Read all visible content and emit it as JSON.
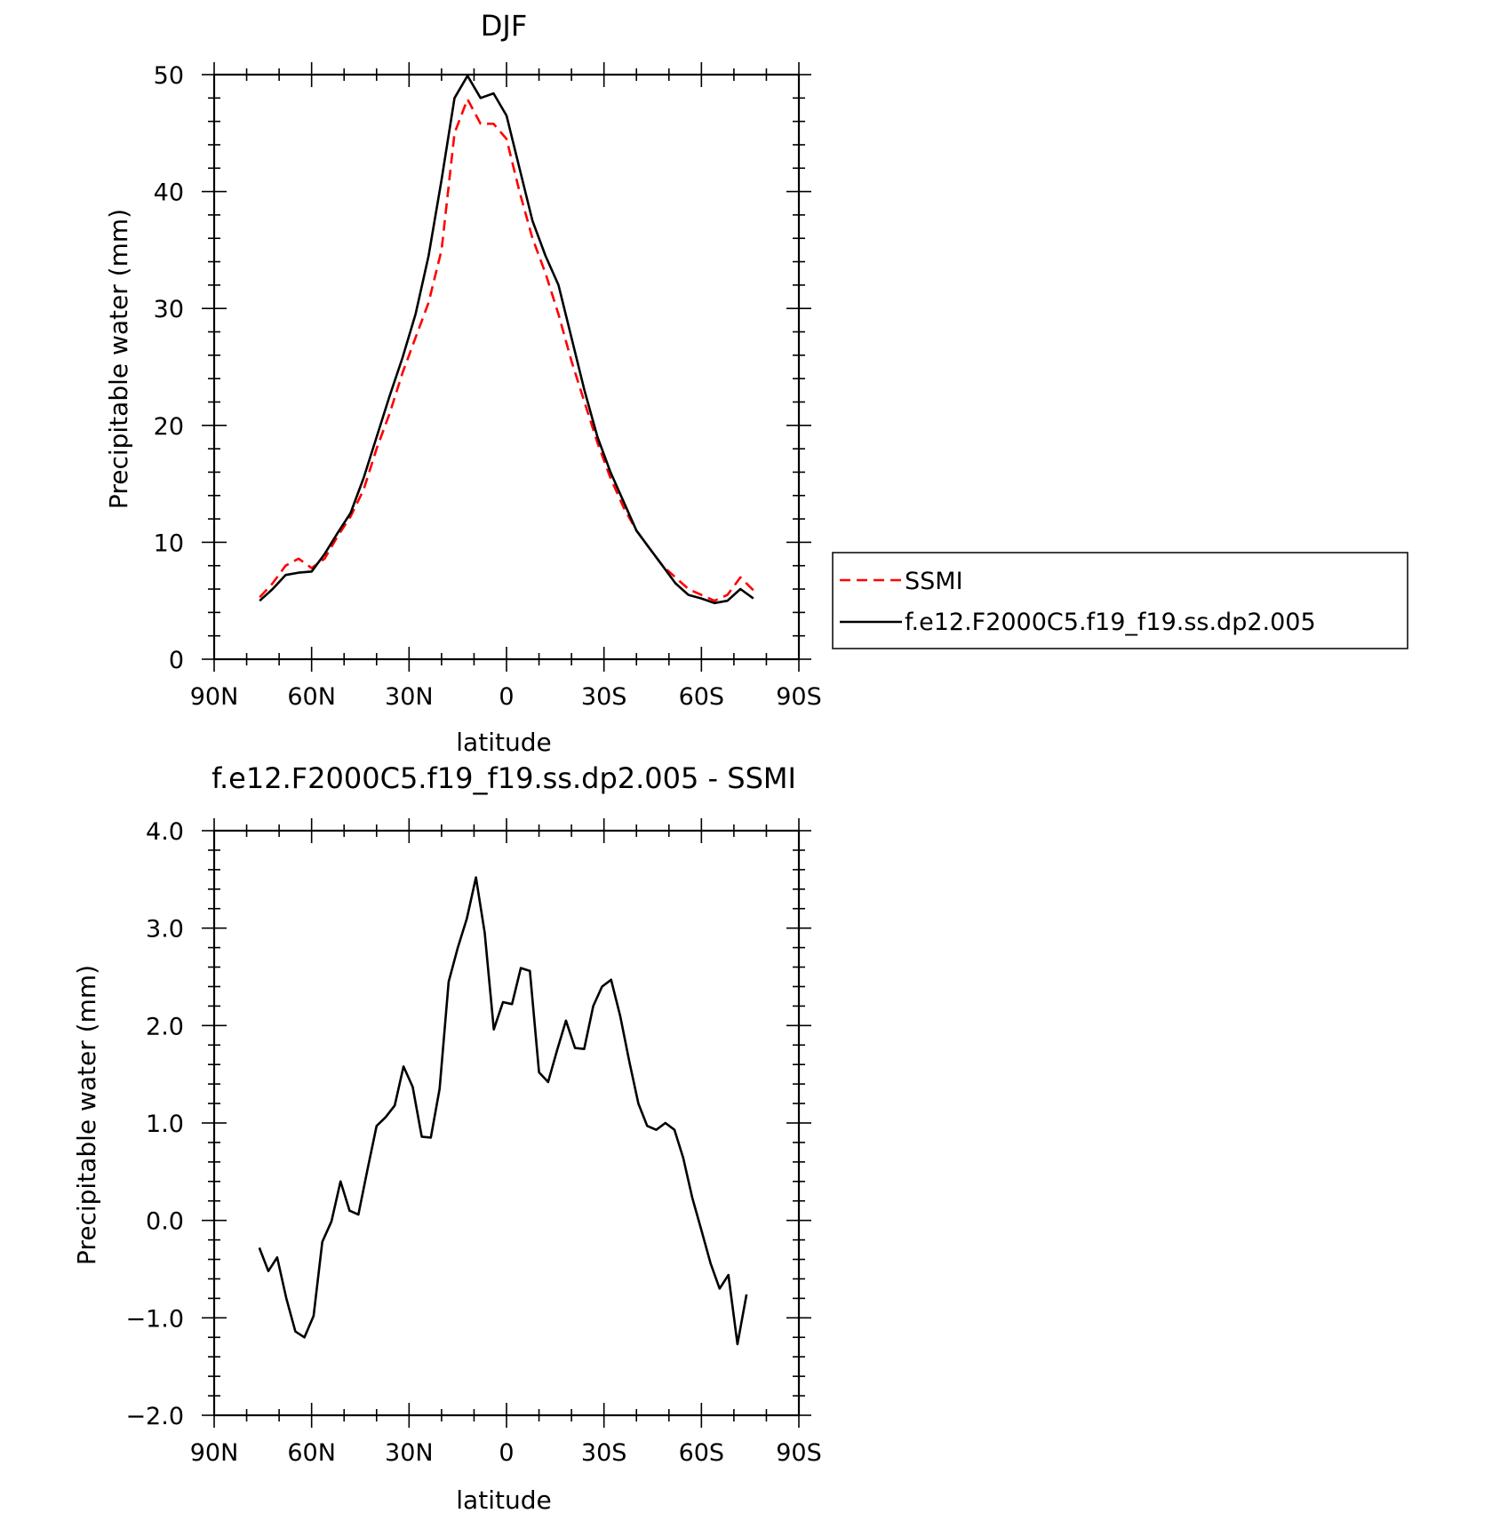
{
  "chart_data": [
    {
      "type": "line",
      "title": "DJF",
      "xlabel": "latitude",
      "ylabel": "Precipitable water (mm)",
      "xlim": [
        90,
        -90
      ],
      "ylim": [
        0,
        50
      ],
      "xticks": [
        90,
        60,
        30,
        0,
        -30,
        -60,
        -90
      ],
      "xtick_labels": [
        "90N",
        "60N",
        "30N",
        "0",
        "30S",
        "60S",
        "90S"
      ],
      "yticks": [
        0,
        10,
        20,
        30,
        40,
        50
      ],
      "ytick_labels": [
        "0",
        "10",
        "20",
        "30",
        "40",
        "50"
      ],
      "grid": false,
      "legend": "outside-right",
      "x": [
        76,
        72,
        68,
        64,
        60,
        56,
        52,
        48,
        44,
        40,
        36,
        32,
        28,
        24,
        20,
        16,
        12,
        8,
        4,
        0,
        -4,
        -8,
        -12,
        -16,
        -20,
        -24,
        -28,
        -32,
        -36,
        -40,
        -44,
        -48,
        -52,
        -56,
        -60,
        -64,
        -68,
        -72,
        -76
      ],
      "series": [
        {
          "name": "SSMI",
          "color": "#ff0000",
          "dash": "dashed",
          "values": [
            5.3,
            6.5,
            8.0,
            8.6,
            7.8,
            8.6,
            10.5,
            12.2,
            14.5,
            18.0,
            21.0,
            24.5,
            27.5,
            30.5,
            35.0,
            45.0,
            47.9,
            45.8,
            45.8,
            44.5,
            40.0,
            36.0,
            33.0,
            29.5,
            25.5,
            22.0,
            18.5,
            15.5,
            13.0,
            11.0,
            9.5,
            8.0,
            7.0,
            6.0,
            5.5,
            5.0,
            5.5,
            7.0,
            5.9
          ]
        },
        {
          "name": "f.e12.F2000C5.f19_f19.ss.dp2.005",
          "color": "#000000",
          "dash": "solid",
          "values": [
            5.0,
            6.0,
            7.2,
            7.4,
            7.5,
            9.0,
            10.8,
            12.5,
            15.5,
            19.0,
            22.5,
            25.8,
            29.5,
            34.5,
            41.0,
            48.0,
            49.9,
            48.0,
            48.4,
            46.5,
            42.0,
            37.5,
            34.5,
            32.0,
            27.5,
            23.0,
            19.0,
            16.0,
            13.5,
            11.0,
            9.5,
            8.0,
            6.5,
            5.5,
            5.2,
            4.8,
            5.0,
            6.0,
            5.2
          ]
        }
      ]
    },
    {
      "type": "line",
      "title": "f.e12.F2000C5.f19_f19.ss.dp2.005 - SSMI",
      "xlabel": "latitude",
      "ylabel": "Precipitable water (mm)",
      "xlim": [
        90,
        -90
      ],
      "ylim": [
        -2.0,
        4.0
      ],
      "xticks": [
        90,
        60,
        30,
        0,
        -30,
        -60,
        -90
      ],
      "xtick_labels": [
        "90N",
        "60N",
        "30N",
        "0",
        "30S",
        "60S",
        "90S"
      ],
      "yticks": [
        -2,
        -1,
        0,
        1,
        2,
        3,
        4
      ],
      "ytick_labels": [
        "−2.0",
        "−1.0",
        "0.0",
        "1.0",
        "2.0",
        "3.0",
        "4.0"
      ],
      "grid": false,
      "x": [
        76.1,
        73.3,
        70.6,
        67.8,
        65.0,
        62.2,
        59.4,
        56.7,
        53.9,
        51.1,
        48.3,
        45.6,
        42.8,
        40.0,
        37.2,
        34.4,
        31.7,
        28.9,
        26.1,
        23.3,
        20.6,
        17.8,
        15.0,
        12.2,
        9.4,
        6.7,
        3.9,
        1.1,
        -1.7,
        -4.4,
        -7.2,
        -10.0,
        -12.8,
        -15.6,
        -18.3,
        -21.1,
        -23.9,
        -26.7,
        -29.4,
        -32.2,
        -35.0,
        -37.8,
        -40.6,
        -43.3,
        -46.1,
        -48.9,
        -51.7,
        -54.4,
        -57.2,
        -60.0,
        -62.8,
        -65.6,
        -68.3,
        -71.1,
        -73.9
      ],
      "series": [
        {
          "color": "#000000",
          "dash": "solid",
          "values": [
            -0.28,
            -0.52,
            -0.38,
            -0.8,
            -1.14,
            -1.2,
            -0.98,
            -0.22,
            -0.01,
            0.4,
            0.1,
            0.06,
            0.52,
            0.97,
            1.06,
            1.18,
            1.58,
            1.37,
            0.86,
            0.85,
            1.35,
            2.45,
            2.8,
            3.1,
            3.52,
            2.95,
            1.96,
            2.24,
            2.22,
            2.59,
            2.56,
            1.52,
            1.42,
            1.75,
            2.05,
            1.77,
            1.76,
            2.2,
            2.4,
            2.47,
            2.1,
            1.63,
            1.2,
            0.97,
            0.93,
            1.0,
            0.93,
            0.64,
            0.23,
            -0.1,
            -0.44,
            -0.7,
            -0.56,
            -1.27,
            -0.76
          ]
        }
      ]
    }
  ]
}
